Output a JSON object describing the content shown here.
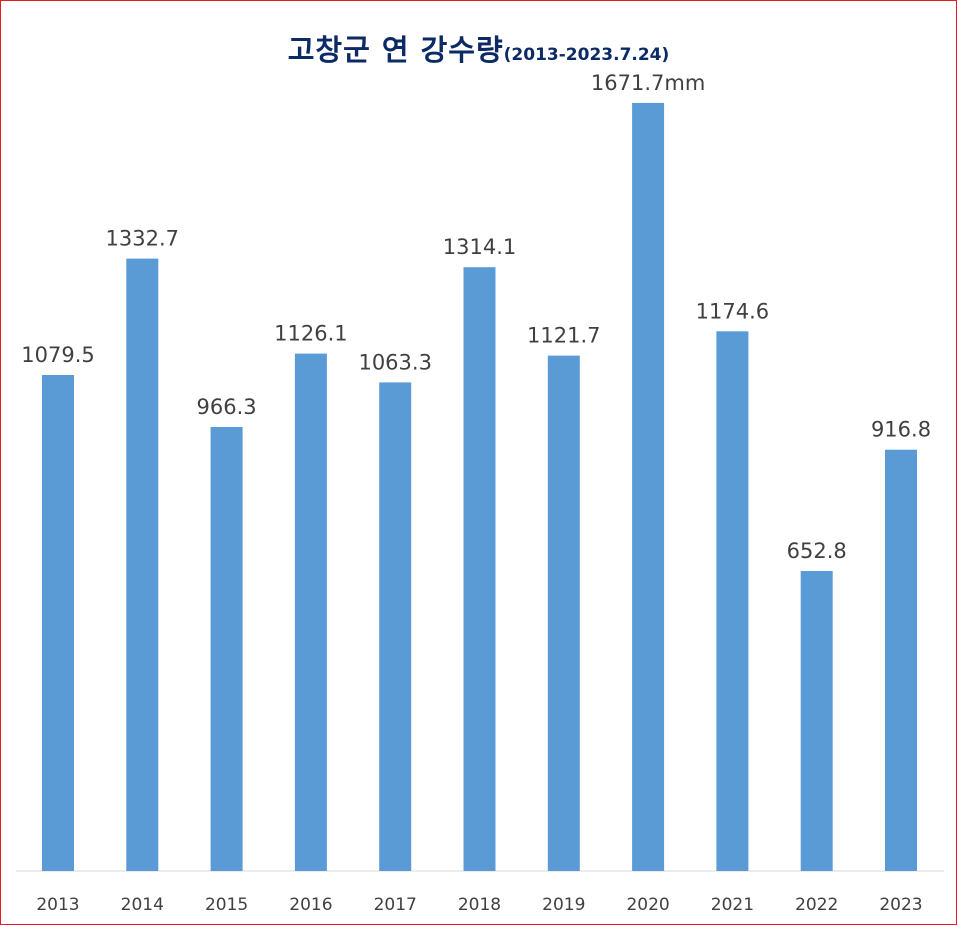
{
  "chart_data": {
    "type": "bar",
    "title": "고창군 연 강수량",
    "subtitle": "(2013-2023.7.24)",
    "unit_suffix": "mm",
    "categories": [
      "2013",
      "2014",
      "2015",
      "2016",
      "2017",
      "2018",
      "2019",
      "2020",
      "2021",
      "2022",
      "2023"
    ],
    "values": [
      1079.5,
      1332.7,
      966.3,
      1126.1,
      1063.3,
      1314.1,
      1121.7,
      1671.7,
      1174.6,
      652.8,
      916.8
    ],
    "data_labels": [
      "1079.5",
      "1332.7",
      "966.3",
      "1126.1",
      "1063.3",
      "1314.1",
      "1121.7",
      "1671.7mm",
      "1174.6",
      "652.8",
      "916.8"
    ],
    "ylim": [
      0,
      1700
    ],
    "grid": false,
    "legend": "none",
    "bar_color": "#5b9bd5",
    "title_color": "#0b2a66",
    "border_color": "#e31b23"
  }
}
